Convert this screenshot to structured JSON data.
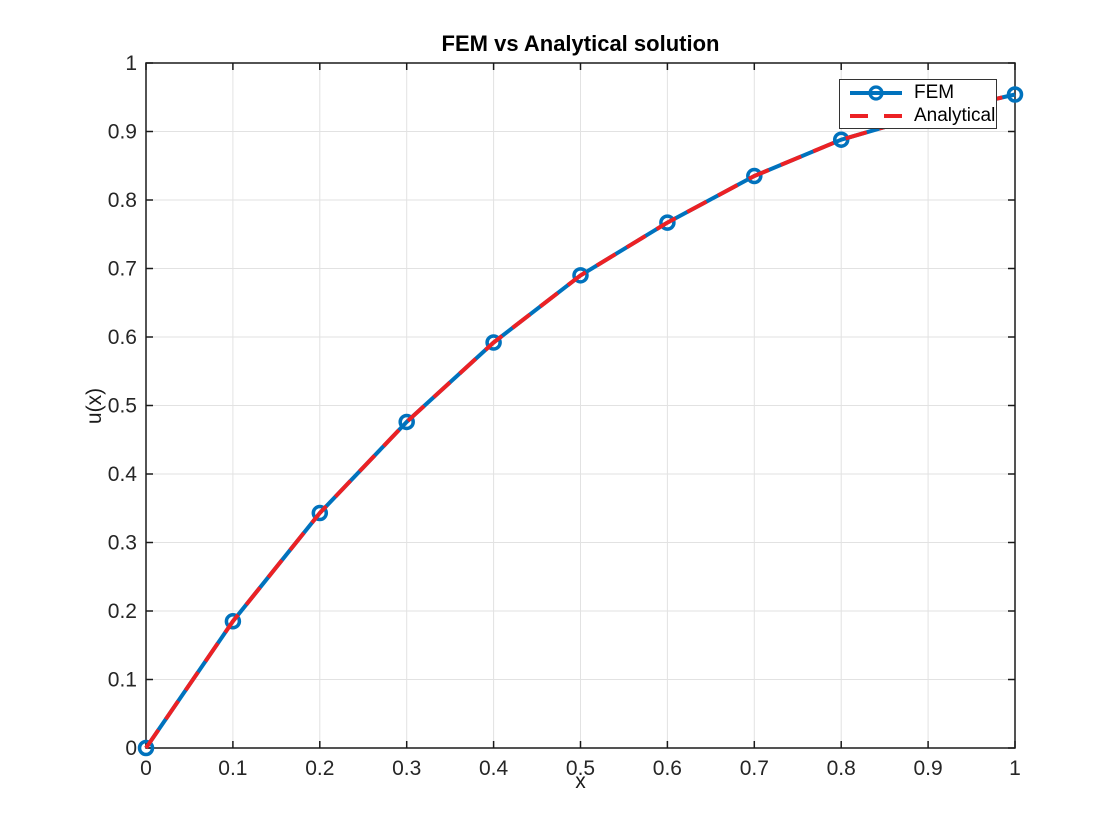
{
  "chart_data": {
    "type": "line",
    "title": "FEM vs Analytical solution",
    "xlabel": "x",
    "ylabel": "u(x)",
    "xlim": [
      0,
      1
    ],
    "ylim": [
      0,
      1
    ],
    "grid": true,
    "legend_position": "northeast",
    "x": [
      0,
      0.1,
      0.2,
      0.3,
      0.4,
      0.5,
      0.6,
      0.7,
      0.8,
      0.9,
      1.0
    ],
    "series": [
      {
        "name": "FEM",
        "color": "#0072BD",
        "line_style": "solid",
        "line_width": 4,
        "marker": "circle",
        "values": [
          0,
          0.185,
          0.343,
          0.476,
          0.592,
          0.69,
          0.767,
          0.835,
          0.888,
          0.925,
          0.954
        ]
      },
      {
        "name": "Analytical",
        "color": "#EC2124",
        "line_style": "dashed",
        "line_width": 4,
        "marker": "none",
        "values": [
          0,
          0.185,
          0.343,
          0.476,
          0.592,
          0.69,
          0.767,
          0.835,
          0.888,
          0.925,
          0.954
        ]
      }
    ],
    "xtick_labels": [
      "0",
      "0.1",
      "0.2",
      "0.3",
      "0.4",
      "0.5",
      "0.6",
      "0.7",
      "0.8",
      "0.9",
      "1"
    ],
    "ytick_labels": [
      "0",
      "0.1",
      "0.2",
      "0.3",
      "0.4",
      "0.5",
      "0.6",
      "0.7",
      "0.8",
      "0.9",
      "1"
    ]
  },
  "style": {
    "axis_color": "#1a1a1a",
    "tick_label_color": "#262626",
    "grid_color": "#e2e2e2",
    "background": "#ffffff"
  }
}
